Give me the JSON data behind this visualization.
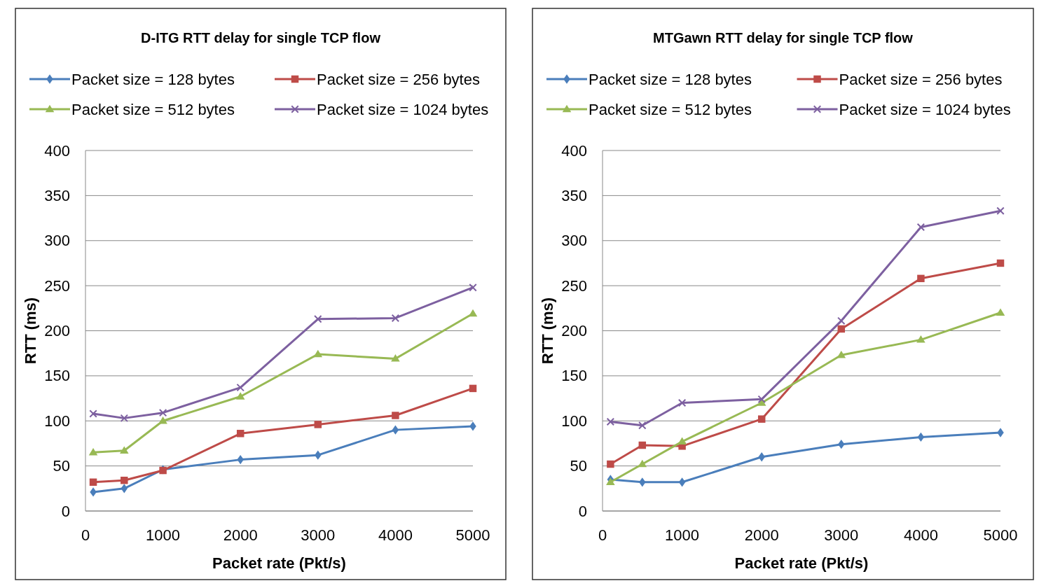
{
  "chart_data": [
    {
      "type": "line",
      "title": "D-ITG RTT delay for single TCP flow",
      "xlabel": "Packet rate (Pkt/s)",
      "ylabel": "RTT (ms)",
      "x": [
        100,
        500,
        1000,
        2000,
        3000,
        4000,
        5000
      ],
      "xlim": [
        0,
        5000
      ],
      "xticks": [
        0,
        1000,
        2000,
        3000,
        4000,
        5000
      ],
      "ylim": [
        0,
        400
      ],
      "yticks": [
        0,
        50,
        100,
        150,
        200,
        250,
        300,
        350,
        400
      ],
      "grid": "y",
      "legend": "top",
      "series": [
        {
          "name": "Packet size = 128 bytes",
          "color": "#4a7ebb",
          "marker": "diamond",
          "values": [
            21,
            25,
            46,
            57,
            62,
            90,
            94
          ]
        },
        {
          "name": "Packet size = 256 bytes",
          "color": "#be4b48",
          "marker": "square",
          "values": [
            32,
            34,
            45,
            86,
            96,
            106,
            136
          ]
        },
        {
          "name": "Packet size = 512 bytes",
          "color": "#98b954",
          "marker": "triangle",
          "values": [
            65,
            67,
            100,
            127,
            174,
            169,
            219
          ]
        },
        {
          "name": "Packet size = 1024 bytes",
          "color": "#7d60a0",
          "marker": "cross",
          "values": [
            108,
            103,
            109,
            137,
            213,
            214,
            248
          ]
        }
      ]
    },
    {
      "type": "line",
      "title": "MTGawn RTT delay for single TCP flow",
      "xlabel": "Packet rate (Pkt/s)",
      "ylabel": "RTT (ms)",
      "x": [
        100,
        500,
        1000,
        2000,
        3000,
        4000,
        5000
      ],
      "xlim": [
        0,
        5000
      ],
      "xticks": [
        0,
        1000,
        2000,
        3000,
        4000,
        5000
      ],
      "ylim": [
        0,
        400
      ],
      "yticks": [
        0,
        50,
        100,
        150,
        200,
        250,
        300,
        350,
        400
      ],
      "grid": "y",
      "legend": "top",
      "series": [
        {
          "name": "Packet size = 128 bytes",
          "color": "#4a7ebb",
          "marker": "diamond",
          "values": [
            35,
            32,
            32,
            60,
            74,
            82,
            87
          ]
        },
        {
          "name": "Packet size = 256 bytes",
          "color": "#be4b48",
          "marker": "square",
          "values": [
            52,
            73,
            72,
            102,
            202,
            258,
            275
          ]
        },
        {
          "name": "Packet size = 512 bytes",
          "color": "#98b954",
          "marker": "triangle",
          "values": [
            32,
            52,
            77,
            120,
            173,
            190,
            220
          ]
        },
        {
          "name": "Packet size = 1024 bytes",
          "color": "#7d60a0",
          "marker": "cross",
          "values": [
            99,
            95,
            120,
            124,
            211,
            315,
            333
          ]
        }
      ]
    }
  ]
}
